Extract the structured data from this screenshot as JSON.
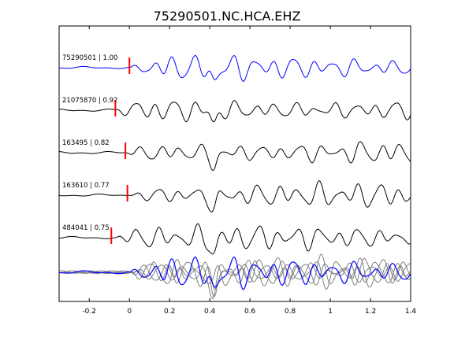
{
  "chart_data": {
    "type": "line",
    "title": "75290501.NC.HCA.EHZ",
    "xlim": [
      -0.35,
      1.4
    ],
    "xticks": [
      -0.2,
      0,
      0.2,
      0.4,
      0.6,
      0.8,
      1,
      1.2,
      1.4
    ],
    "xtick_labels": [
      "-0.2",
      "0",
      "0.2",
      "0.4",
      "0.6",
      "0.8",
      "1",
      "1.2",
      "1.4"
    ],
    "grid": false,
    "legend": "none",
    "pick_color": "#ff0000",
    "reference_color": "#0000ff",
    "overlay_color": "#808080",
    "trace_color": "#000000",
    "traces": [
      {
        "label": "75290501 | 1.00",
        "id": "75290501",
        "correlation": 1.0,
        "pick_time": 0.0,
        "color": "#0000ff"
      },
      {
        "label": "21075870 | 0.92",
        "id": "21075870",
        "correlation": 0.92,
        "pick_time": -0.07,
        "color": "#000000"
      },
      {
        "label": "163495 | 0.82",
        "id": "163495",
        "correlation": 0.82,
        "pick_time": -0.02,
        "color": "#000000"
      },
      {
        "label": "163610 | 0.77",
        "id": "163610",
        "correlation": 0.77,
        "pick_time": -0.01,
        "color": "#000000"
      },
      {
        "label": "484041 | 0.75",
        "id": "484041",
        "correlation": 0.75,
        "pick_time": -0.09,
        "color": "#000000"
      }
    ],
    "overlay": {
      "shows": "all traces aligned and stacked",
      "reference": "75290501"
    }
  }
}
